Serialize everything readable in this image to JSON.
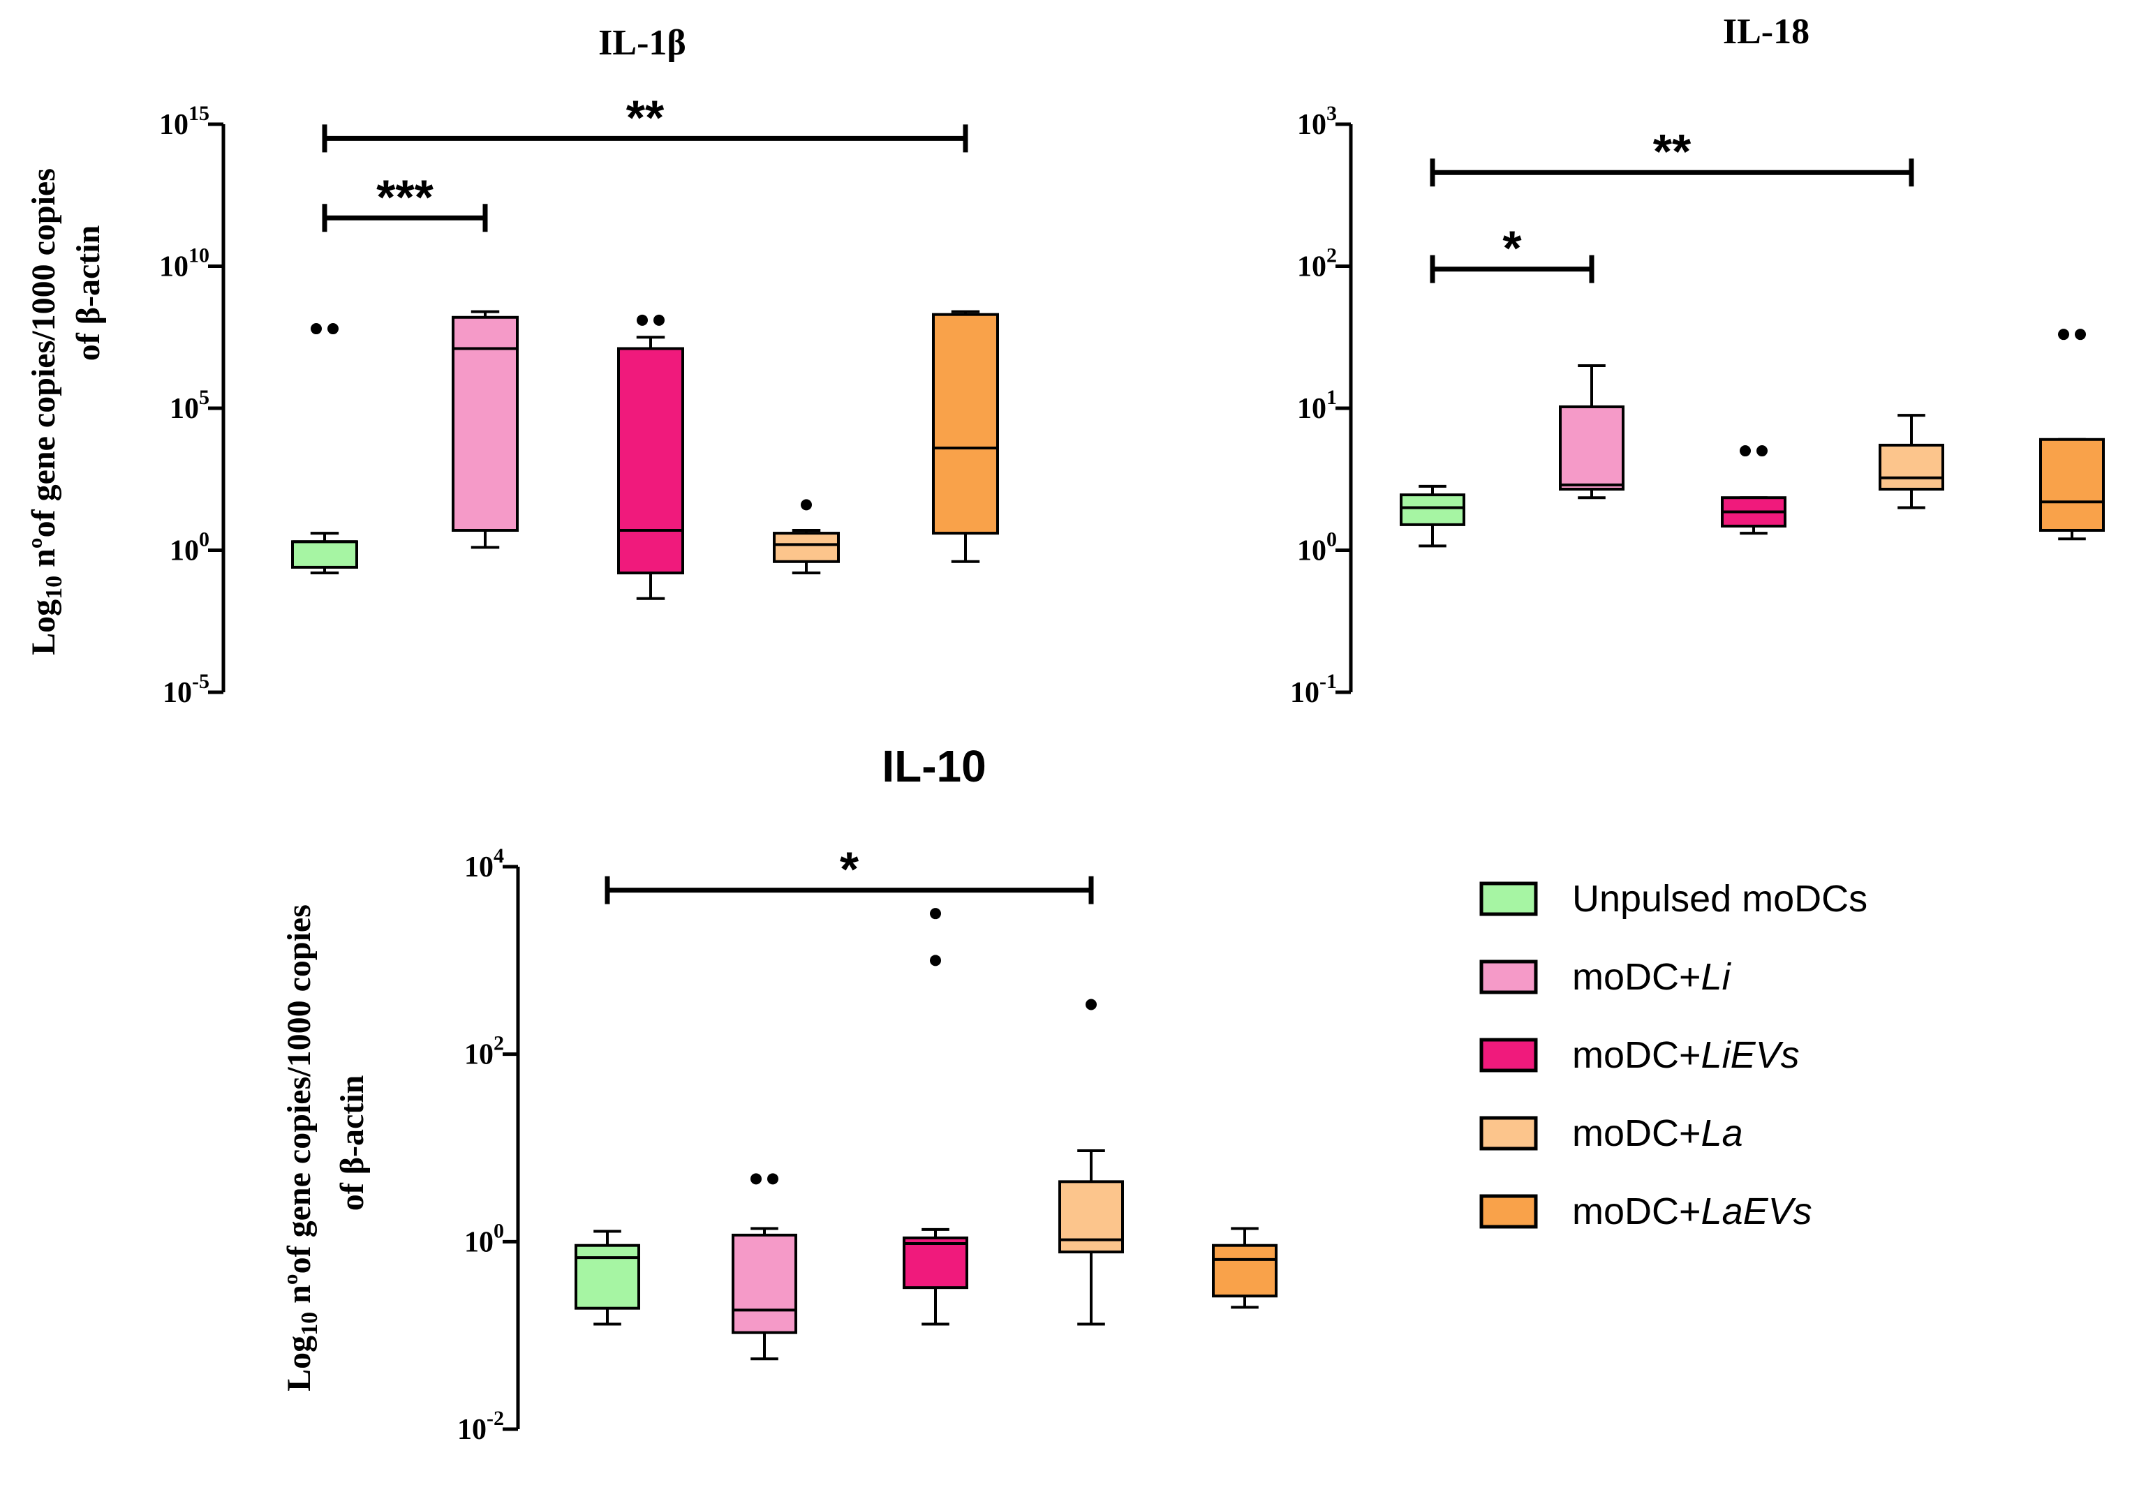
{
  "chart_data": [
    {
      "type": "box",
      "title": "IL-1β",
      "ylabel_parts": [
        "Log",
        "10",
        " nºof gene copies/1000 copies",
        "of β-actin"
      ],
      "yscale": "log10",
      "ylim_exp": [
        -5,
        15
      ],
      "ytick_exps": [
        -5,
        0,
        5,
        10,
        15
      ],
      "categories": [
        "Unpulsed moDCs",
        "moDC+Li",
        "moDC+LiEVs",
        "moDC+La",
        "moDC+LaEVs"
      ],
      "boxes_log10": [
        {
          "whislo": -0.8,
          "q1": -0.6,
          "med": 0.3,
          "q3": 0.3,
          "whishi": 0.6,
          "fliers": [
            7.8,
            7.8
          ]
        },
        {
          "whislo": 0.1,
          "q1": 0.7,
          "med": 7.1,
          "q3": 8.2,
          "whishi": 8.4,
          "fliers": []
        },
        {
          "whislo": -1.7,
          "q1": -0.8,
          "med": 0.7,
          "q3": 7.1,
          "whishi": 7.5,
          "fliers": [
            8.1,
            8.1
          ]
        },
        {
          "whislo": -0.8,
          "q1": -0.4,
          "med": 0.2,
          "q3": 0.6,
          "whishi": 0.7,
          "fliers": [
            1.6
          ]
        },
        {
          "whislo": -0.4,
          "q1": 0.6,
          "med": 3.6,
          "q3": 8.3,
          "whishi": 8.4,
          "fliers": []
        }
      ],
      "significance": [
        {
          "from": 0,
          "to": 1,
          "label": "***",
          "y_log10": 11.7
        },
        {
          "from": 0,
          "to": 4,
          "label": "**",
          "y_log10": 14.5
        }
      ]
    },
    {
      "type": "box",
      "title": "IL-18",
      "yscale": "log10",
      "ylim_exp": [
        -1,
        3
      ],
      "ytick_exps": [
        -1,
        0,
        1,
        2,
        3
      ],
      "categories": [
        "Unpulsed moDCs",
        "moDC+Li",
        "moDC+LiEVs",
        "moDC+La",
        "moDC+LaEVs"
      ],
      "boxes_log10": [
        {
          "whislo": 0.03,
          "q1": 0.18,
          "med": 0.3,
          "q3": 0.39,
          "whishi": 0.45,
          "fliers": []
        },
        {
          "whislo": 0.37,
          "q1": 0.43,
          "med": 0.46,
          "q3": 1.01,
          "whishi": 1.3,
          "fliers": []
        },
        {
          "whislo": 0.12,
          "q1": 0.17,
          "med": 0.27,
          "q3": 0.37,
          "whishi": 0.37,
          "fliers": [
            0.7,
            0.7
          ]
        },
        {
          "whislo": 0.3,
          "q1": 0.43,
          "med": 0.51,
          "q3": 0.74,
          "whishi": 0.95,
          "fliers": []
        },
        {
          "whislo": 0.08,
          "q1": 0.14,
          "med": 0.34,
          "q3": 0.78,
          "whishi": 0.78,
          "fliers": [
            1.52,
            1.52
          ]
        }
      ],
      "significance": [
        {
          "from": 0,
          "to": 1,
          "label": "*",
          "y_log10": 1.98
        },
        {
          "from": 0,
          "to": 3,
          "label": "**",
          "y_log10": 2.66
        }
      ]
    },
    {
      "type": "box",
      "title": "IL-10",
      "ylabel_parts": [
        "Log",
        "10",
        " nºof gene copies/1000 copies",
        "of β-actin"
      ],
      "yscale": "log10",
      "ylim_exp": [
        -2,
        4
      ],
      "ytick_exps": [
        -2,
        0,
        2,
        4
      ],
      "categories": [
        "Unpulsed moDCs",
        "moDC+Li",
        "moDC+LiEVs",
        "moDC+La",
        "moDC+LaEVs"
      ],
      "boxes_log10": [
        {
          "whislo": -0.88,
          "q1": -0.71,
          "med": -0.17,
          "q3": -0.04,
          "whishi": 0.11,
          "fliers": []
        },
        {
          "whislo": -1.25,
          "q1": -0.97,
          "med": -0.73,
          "q3": 0.07,
          "whishi": 0.14,
          "fliers": [
            0.67,
            0.67
          ]
        },
        {
          "whislo": -0.88,
          "q1": -0.49,
          "med": -0.02,
          "q3": 0.04,
          "whishi": 0.13,
          "fliers": [
            3.0,
            3.5
          ]
        },
        {
          "whislo": -0.88,
          "q1": -0.11,
          "med": 0.02,
          "q3": 0.64,
          "whishi": 0.97,
          "fliers": [
            2.53
          ]
        },
        {
          "whislo": -0.7,
          "q1": -0.58,
          "med": -0.19,
          "q3": -0.04,
          "whishi": 0.14,
          "fliers": []
        }
      ],
      "significance": [
        {
          "from": 0,
          "to": 3,
          "label": "*",
          "y_log10": 3.75
        }
      ]
    }
  ],
  "legend": [
    {
      "prefix": "Unpulsed moDCs",
      "italic": "",
      "color": "#a6f5a3"
    },
    {
      "prefix": "moDC+",
      "italic": "Li",
      "color": "#f59ac8"
    },
    {
      "prefix": "moDC+",
      "italic": "LiEVs",
      "color": "#f01a7c"
    },
    {
      "prefix": "moDC+",
      "italic": "La",
      "color": "#fcc58c"
    },
    {
      "prefix": "moDC+",
      "italic": "LaEVs",
      "color": "#f9a24a"
    }
  ]
}
